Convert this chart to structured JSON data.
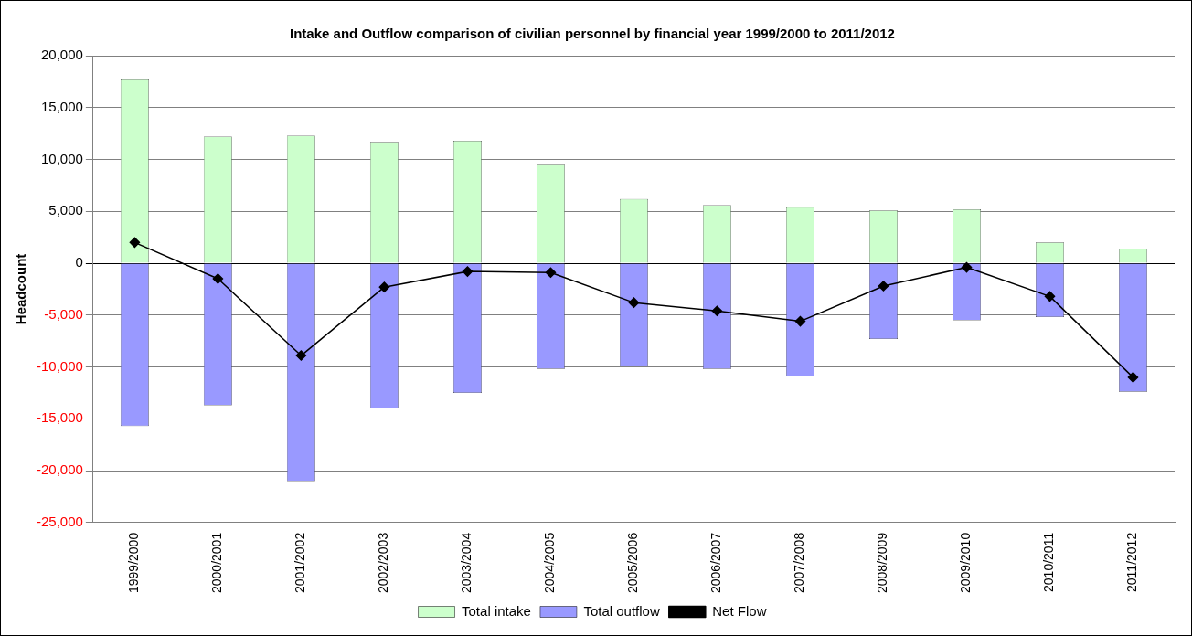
{
  "chart_data": {
    "type": "bar",
    "title": "Intake and Outflow comparison of civilian personnel by financial year 1999/2000 to 2011/2012",
    "ylabel": "Headcount",
    "categories": [
      "1999/2000",
      "2000/2001",
      "2001/2002",
      "2002/2003",
      "2003/2004",
      "2004/2005",
      "2005/2006",
      "2006/2007",
      "2007/2008",
      "2008/2009",
      "2009/2010",
      "2010/2011",
      "2011/2012"
    ],
    "stacked": true,
    "series": [
      {
        "name": "Total intake",
        "color": "#ccffcc",
        "values": [
          17800,
          12200,
          12300,
          11700,
          11800,
          9500,
          6200,
          5600,
          5400,
          5100,
          5200,
          2000,
          1400
        ]
      },
      {
        "name": "Total outflow",
        "color": "#9999ff",
        "values": [
          -15700,
          -13700,
          -21000,
          -14000,
          -12500,
          -10200,
          -9900,
          -10200,
          -10900,
          -7300,
          -5500,
          -5200,
          -12400
        ]
      },
      {
        "name": "Net Flow",
        "type": "line",
        "color": "#000000",
        "marker": "diamond",
        "values": [
          2000,
          -1500,
          -8900,
          -2300,
          -800,
          -900,
          -3800,
          -4600,
          -5600,
          -2200,
          -400,
          -3200,
          -11000
        ]
      }
    ],
    "ylim": [
      -25000,
      20000
    ],
    "yticks": [
      {
        "value": -25000,
        "label": "-25,000"
      },
      {
        "value": -20000,
        "label": "-20,000"
      },
      {
        "value": -15000,
        "label": "-15,000"
      },
      {
        "value": -10000,
        "label": "-10,000"
      },
      {
        "value": -5000,
        "label": "-5,000"
      },
      0,
      {
        "value": 5000,
        "label": "5,000"
      },
      {
        "value": 10000,
        "label": "10,000"
      },
      {
        "value": 15000,
        "label": "15,000"
      },
      {
        "value": 20000,
        "label": "20,000"
      }
    ],
    "grid": "y",
    "legend": "bottom"
  }
}
